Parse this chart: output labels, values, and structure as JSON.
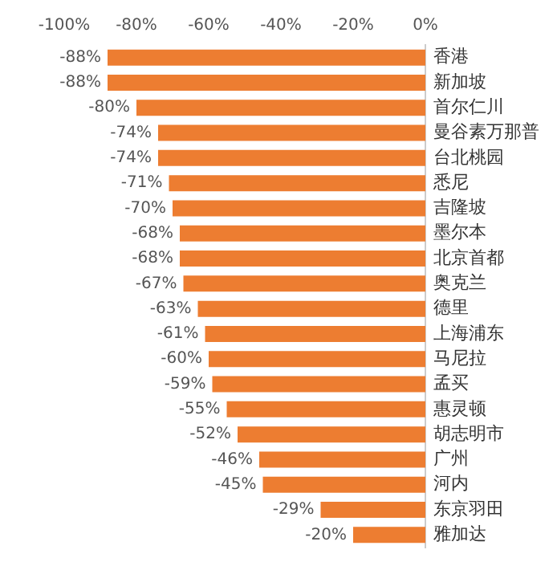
{
  "chart_data": {
    "type": "bar",
    "orientation": "horizontal",
    "categories": [
      "香港",
      "新加坡",
      "首尔仁川",
      "曼谷素万那普",
      "台北桃园",
      "悉尼",
      "吉隆坡",
      "墨尔本",
      "北京首都",
      "奥克兰",
      "德里",
      "上海浦东",
      "马尼拉",
      "孟买",
      "惠灵顿",
      "胡志明市",
      "广州",
      "河内",
      "东京羽田",
      "雅加达"
    ],
    "values": [
      -88,
      -88,
      -80,
      -74,
      -74,
      -71,
      -70,
      -68,
      -68,
      -67,
      -63,
      -61,
      -60,
      -59,
      -55,
      -52,
      -46,
      -45,
      -29,
      -20
    ],
    "color": "#ed7d31",
    "xlim": [
      -100,
      0
    ],
    "xticks": [
      {
        "value": -100,
        "label": "-100%"
      },
      {
        "value": -80,
        "label": "-80%"
      },
      {
        "value": -60,
        "label": "-60%"
      },
      {
        "value": -40,
        "label": "-40%"
      },
      {
        "value": -20,
        "label": "-20%"
      },
      {
        "value": 0,
        "label": "0%"
      }
    ],
    "value_labels": [
      "-88%",
      "-88%",
      "-80%",
      "-74%",
      "-74%",
      "-71%",
      "-70%",
      "-68%",
      "-68%",
      "-67%",
      "-63%",
      "-61%",
      "-60%",
      "-59%",
      "-55%",
      "-52%",
      "-46%",
      "-45%",
      "-29%",
      "-20%"
    ],
    "grid": false,
    "legend": false
  }
}
